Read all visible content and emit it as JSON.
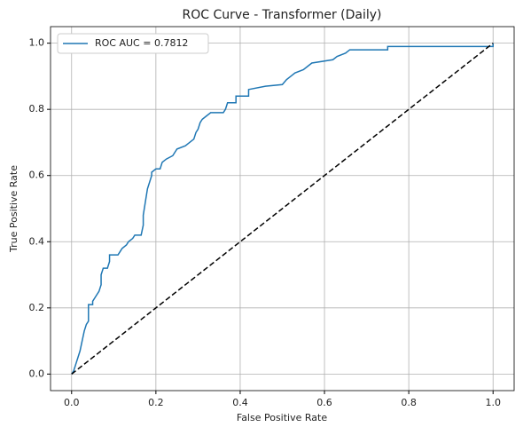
{
  "chart_data": {
    "type": "line",
    "title": "ROC Curve - Transformer (Daily)",
    "xlabel": "False Positive Rate",
    "ylabel": "True Positive Rate",
    "xlim": [
      -0.05,
      1.05
    ],
    "ylim": [
      -0.05,
      1.05
    ],
    "xticks": [
      {
        "value": 0,
        "label": "0.0"
      },
      0.2,
      0.4,
      0.6,
      0.8,
      {
        "value": 1,
        "label": "1.0"
      }
    ],
    "yticks": [
      {
        "value": 0,
        "label": "0.0"
      },
      0.2,
      0.4,
      0.6,
      0.8,
      {
        "value": 1,
        "label": "1.0"
      }
    ],
    "grid": true,
    "legend": "upper left",
    "series": [
      {
        "name": "ROC AUC = 0.7812",
        "color": "#1f77b4",
        "x": [
          0,
          0.005,
          0.01,
          0.015,
          0.02,
          0.025,
          0.03,
          0.035,
          0.04,
          0.04,
          0.05,
          0.05,
          0.055,
          0.06,
          0.065,
          0.07,
          0.07,
          0.075,
          0.085,
          0.09,
          0.09,
          0.11,
          0.115,
          0.12,
          0.13,
          0.135,
          0.145,
          0.15,
          0.165,
          0.17,
          0.17,
          0.175,
          0.18,
          0.19,
          0.19,
          0.2,
          0.21,
          0.215,
          0.225,
          0.24,
          0.245,
          0.25,
          0.27,
          0.28,
          0.29,
          0.295,
          0.3,
          0.305,
          0.31,
          0.32,
          0.33,
          0.36,
          0.365,
          0.37,
          0.39,
          0.39,
          0.42,
          0.42,
          0.46,
          0.5,
          0.51,
          0.52,
          0.53,
          0.55,
          0.56,
          0.57,
          0.62,
          0.63,
          0.65,
          0.66,
          0.75,
          0.75,
          1.0,
          1.0
        ],
        "values": [
          0,
          0.01,
          0.03,
          0.05,
          0.07,
          0.1,
          0.13,
          0.15,
          0.16,
          0.21,
          0.21,
          0.22,
          0.23,
          0.24,
          0.25,
          0.27,
          0.3,
          0.32,
          0.32,
          0.34,
          0.36,
          0.36,
          0.37,
          0.38,
          0.39,
          0.4,
          0.41,
          0.42,
          0.42,
          0.45,
          0.48,
          0.52,
          0.56,
          0.6,
          0.61,
          0.62,
          0.62,
          0.64,
          0.65,
          0.66,
          0.67,
          0.68,
          0.69,
          0.7,
          0.71,
          0.73,
          0.74,
          0.76,
          0.77,
          0.78,
          0.79,
          0.79,
          0.8,
          0.82,
          0.82,
          0.84,
          0.84,
          0.86,
          0.87,
          0.875,
          0.89,
          0.9,
          0.91,
          0.92,
          0.93,
          0.94,
          0.95,
          0.96,
          0.97,
          0.98,
          0.98,
          0.99,
          0.99,
          1.0
        ]
      },
      {
        "color": "#000000",
        "linestyle": "dashed",
        "x": [
          0,
          1
        ],
        "values": [
          0,
          1
        ]
      }
    ]
  }
}
